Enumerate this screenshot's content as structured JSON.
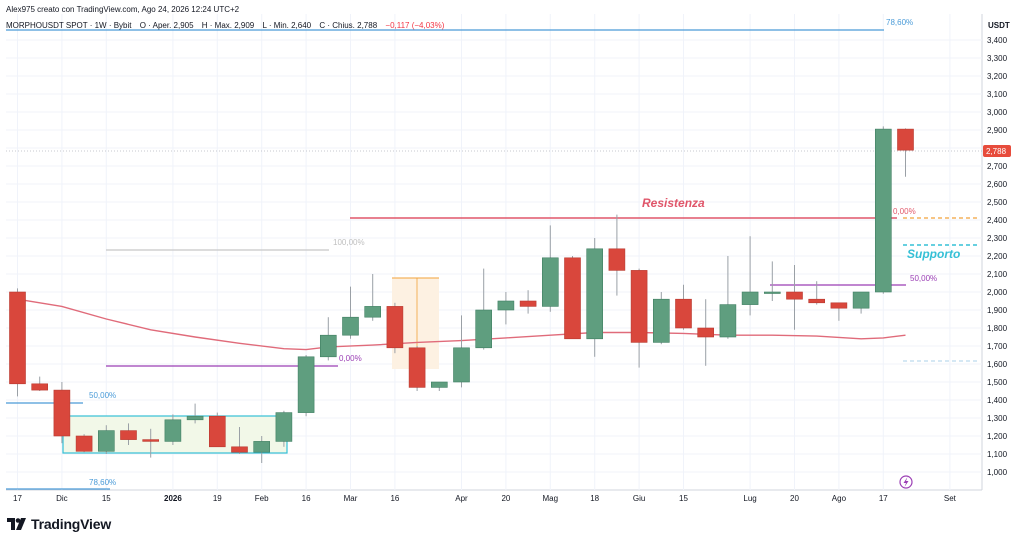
{
  "header": {
    "creator_line": "Alex975 creato con TradingView.com, Ago 24, 2026 12:24 UTC+2",
    "symbol": "MORPHOUSDT SPOT · 1W · Bybit",
    "open": "O · Aper. 2,905",
    "high": "H · Max. 2,909",
    "low": "L · Min. 2,640",
    "close": "C · Chius. 2,788",
    "change": "−0,117 (−4,03%)"
  },
  "logo": {
    "text": "TradingView",
    "icon": "tradingview-logo-icon"
  },
  "colors": {
    "up": "#5f9e7f",
    "down": "#d9473c",
    "ma": "#e06b7a",
    "resistance": "#e0566a",
    "support": "#35c0d6",
    "fib_blue": "#4a9bd8",
    "fib_purple": "#9b3fb5",
    "fib_orange": "#f2a23a",
    "price_badge": "#e74c3c"
  },
  "chart_data": {
    "type": "candlestick",
    "ylabel": "USDT",
    "ylim": [
      920,
      3500
    ],
    "yticks": [
      "1,000",
      "1,100",
      "1,200",
      "1,300",
      "1,400",
      "1,500",
      "1,600",
      "1,700",
      "1,800",
      "1,900",
      "2,000",
      "2,100",
      "2,200",
      "2,300",
      "2,400",
      "2,500",
      "2,600",
      "2,700",
      "2,800",
      "2,900",
      "3,000",
      "3,100",
      "3,200",
      "3,300",
      "3,400"
    ],
    "ytick_values": [
      1000,
      1100,
      1200,
      1300,
      1400,
      1500,
      1600,
      1700,
      1800,
      1900,
      2000,
      2100,
      2200,
      2300,
      2400,
      2500,
      2600,
      2700,
      2800,
      2900,
      3000,
      3100,
      3200,
      3300,
      3400
    ],
    "xticks": [
      {
        "label": "17",
        "i": 0
      },
      {
        "label": "Dic",
        "i": 2
      },
      {
        "label": "15",
        "i": 4
      },
      {
        "label": "2026",
        "i": 7,
        "bold": true
      },
      {
        "label": "19",
        "i": 9
      },
      {
        "label": "Feb",
        "i": 11
      },
      {
        "label": "16",
        "i": 13
      },
      {
        "label": "Mar",
        "i": 15
      },
      {
        "label": "16",
        "i": 17
      },
      {
        "label": "Apr",
        "i": 20
      },
      {
        "label": "20",
        "i": 22
      },
      {
        "label": "Mag",
        "i": 24
      },
      {
        "label": "18",
        "i": 26
      },
      {
        "label": "Giu",
        "i": 28
      },
      {
        "label": "15",
        "i": 30
      },
      {
        "label": "Lug",
        "i": 33
      },
      {
        "label": "20",
        "i": 35
      },
      {
        "label": "Ago",
        "i": 37
      },
      {
        "label": "17",
        "i": 39
      },
      {
        "label": "Set",
        "i": 42
      }
    ],
    "candles": [
      {
        "o": 2000,
        "h": 2020,
        "l": 1420,
        "c": 1490
      },
      {
        "o": 1490,
        "h": 1530,
        "l": 1450,
        "c": 1455
      },
      {
        "o": 1455,
        "h": 1500,
        "l": 1160,
        "c": 1200
      },
      {
        "o": 1200,
        "h": 1210,
        "l": 1110,
        "c": 1115
      },
      {
        "o": 1115,
        "h": 1260,
        "l": 1100,
        "c": 1230
      },
      {
        "o": 1230,
        "h": 1270,
        "l": 1150,
        "c": 1180
      },
      {
        "o": 1180,
        "h": 1240,
        "l": 1080,
        "c": 1170
      },
      {
        "o": 1170,
        "h": 1320,
        "l": 1150,
        "c": 1290
      },
      {
        "o": 1290,
        "h": 1380,
        "l": 1270,
        "c": 1310
      },
      {
        "o": 1310,
        "h": 1330,
        "l": 1140,
        "c": 1140
      },
      {
        "o": 1140,
        "h": 1250,
        "l": 1100,
        "c": 1110
      },
      {
        "o": 1110,
        "h": 1200,
        "l": 1050,
        "c": 1170
      },
      {
        "o": 1170,
        "h": 1340,
        "l": 1140,
        "c": 1330
      },
      {
        "o": 1330,
        "h": 1650,
        "l": 1310,
        "c": 1640
      },
      {
        "o": 1640,
        "h": 1860,
        "l": 1620,
        "c": 1760
      },
      {
        "o": 1760,
        "h": 2030,
        "l": 1740,
        "c": 1860
      },
      {
        "o": 1860,
        "h": 2100,
        "l": 1840,
        "c": 1920
      },
      {
        "o": 1920,
        "h": 1940,
        "l": 1660,
        "c": 1690
      },
      {
        "o": 1690,
        "h": 1700,
        "l": 1450,
        "c": 1470
      },
      {
        "o": 1470,
        "h": 1500,
        "l": 1450,
        "c": 1500
      },
      {
        "o": 1500,
        "h": 1870,
        "l": 1470,
        "c": 1690
      },
      {
        "o": 1690,
        "h": 2130,
        "l": 1680,
        "c": 1900
      },
      {
        "o": 1900,
        "h": 2000,
        "l": 1820,
        "c": 1950
      },
      {
        "o": 1950,
        "h": 2010,
        "l": 1880,
        "c": 1920
      },
      {
        "o": 1920,
        "h": 2370,
        "l": 1890,
        "c": 2190
      },
      {
        "o": 2190,
        "h": 2200,
        "l": 1740,
        "c": 1740
      },
      {
        "o": 1740,
        "h": 2300,
        "l": 1640,
        "c": 2240
      },
      {
        "o": 2240,
        "h": 2430,
        "l": 1980,
        "c": 2120
      },
      {
        "o": 2120,
        "h": 2130,
        "l": 1580,
        "c": 1720
      },
      {
        "o": 1720,
        "h": 2000,
        "l": 1710,
        "c": 1960
      },
      {
        "o": 1960,
        "h": 2040,
        "l": 1790,
        "c": 1800
      },
      {
        "o": 1800,
        "h": 1960,
        "l": 1590,
        "c": 1750
      },
      {
        "o": 1750,
        "h": 2200,
        "l": 1740,
        "c": 1930
      },
      {
        "o": 1930,
        "h": 2310,
        "l": 1870,
        "c": 2000
      },
      {
        "o": 2000,
        "h": 2170,
        "l": 1950,
        "c": 2000
      },
      {
        "o": 2000,
        "h": 2150,
        "l": 1790,
        "c": 1960
      },
      {
        "o": 1960,
        "h": 2060,
        "l": 1930,
        "c": 1940
      },
      {
        "o": 1940,
        "h": 1940,
        "l": 1840,
        "c": 1910
      },
      {
        "o": 1910,
        "h": 2000,
        "l": 1880,
        "c": 2000
      },
      {
        "o": 2000,
        "h": 2920,
        "l": 1990,
        "c": 2905
      },
      {
        "o": 2905,
        "h": 2909,
        "l": 2640,
        "c": 2788
      }
    ],
    "moving_average": [
      {
        "i": 0,
        "v": 1960
      },
      {
        "i": 2,
        "v": 1920
      },
      {
        "i": 4,
        "v": 1850
      },
      {
        "i": 6,
        "v": 1790
      },
      {
        "i": 8,
        "v": 1750
      },
      {
        "i": 10,
        "v": 1715
      },
      {
        "i": 12,
        "v": 1685
      },
      {
        "i": 13,
        "v": 1680
      },
      {
        "i": 14,
        "v": 1695
      },
      {
        "i": 16,
        "v": 1705
      },
      {
        "i": 18,
        "v": 1720
      },
      {
        "i": 20,
        "v": 1730
      },
      {
        "i": 22,
        "v": 1745
      },
      {
        "i": 24,
        "v": 1760
      },
      {
        "i": 26,
        "v": 1775
      },
      {
        "i": 28,
        "v": 1775
      },
      {
        "i": 30,
        "v": 1770
      },
      {
        "i": 32,
        "v": 1760
      },
      {
        "i": 34,
        "v": 1760
      },
      {
        "i": 36,
        "v": 1755
      },
      {
        "i": 38,
        "v": 1740
      },
      {
        "i": 39,
        "v": 1745
      },
      {
        "i": 40,
        "v": 1760
      }
    ],
    "current_price": "2,788",
    "annotations": {
      "resistance_label": "Resistenza",
      "support_label": "Supporto",
      "fib_top": "78,60%",
      "fib_bottom": "78,60%",
      "fib_left_50": "50,00%",
      "fib_0_left": "0,00%",
      "fib_100": "100,00%",
      "fib_0_right": "0,00%",
      "fib_50_right": "50,00%"
    }
  }
}
